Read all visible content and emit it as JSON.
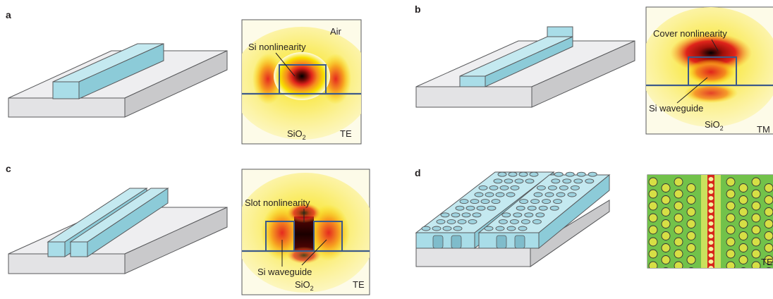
{
  "panels": [
    {
      "letter": "a",
      "structure": "strip-waveguide",
      "mode": {
        "region_top": "Air",
        "region_bottom": "SiO",
        "region_bottom_sub": "2",
        "annotations": [
          "Si nonlinearity"
        ],
        "polarization": "TE"
      }
    },
    {
      "letter": "b",
      "structure": "strip-waveguide-with-cover",
      "mode": {
        "region_bottom": "SiO",
        "region_bottom_sub": "2",
        "annotations": [
          "Cover nonlinearity",
          "Si waveguide"
        ],
        "polarization": "TM"
      }
    },
    {
      "letter": "c",
      "structure": "slot-waveguide",
      "mode": {
        "region_bottom": "SiO",
        "region_bottom_sub": "2",
        "annotations": [
          "Slot nonlinearity",
          "Si waveguide"
        ],
        "polarization": "TE"
      }
    },
    {
      "letter": "d",
      "structure": "photonic-crystal-slot-waveguide",
      "mode": {
        "polarization": "TE"
      }
    }
  ],
  "colors": {
    "waveguide": "#a9dde8",
    "substrate": "#e9e9ea",
    "interface": "#3c5a8a",
    "field_peak": "#1a0000",
    "field_high": "#d9261c",
    "field_mid": "#f6e500",
    "background_pc": "#6cbf45"
  }
}
